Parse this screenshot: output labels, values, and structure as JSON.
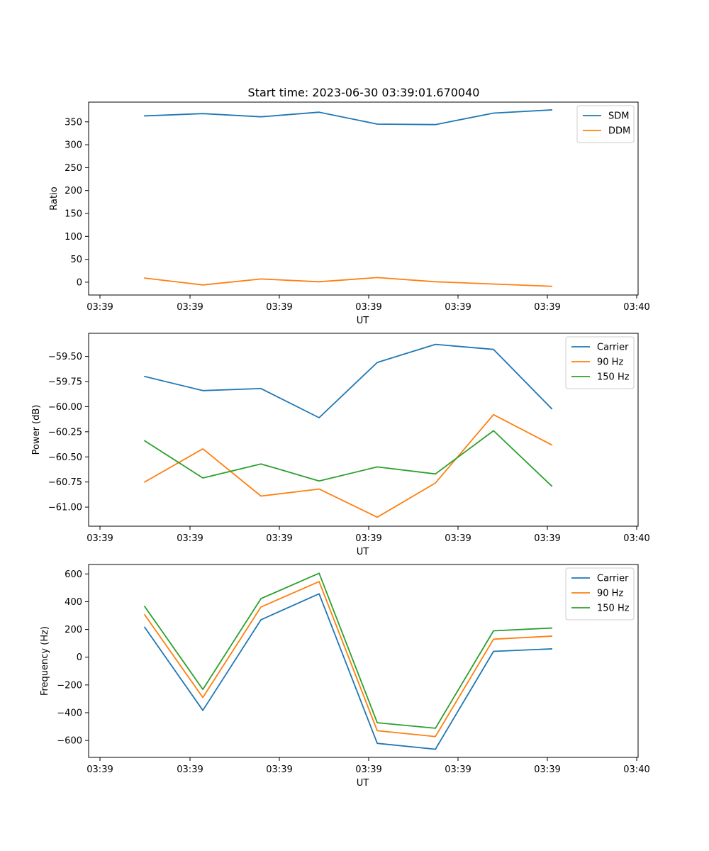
{
  "figure": {
    "title": "Start time: 2023-06-30 03:39:01.670040"
  },
  "colors": {
    "blue": "#1f77b4",
    "orange": "#ff7f0e",
    "green": "#2ca02c"
  },
  "chart_data": [
    {
      "type": "line",
      "xlabel": "UT",
      "ylabel": "Ratio",
      "x_tick_labels": [
        "03:39",
        "03:39",
        "03:39",
        "03:39",
        "03:39",
        "03:39",
        "03:40"
      ],
      "xlim": [
        0,
        6
      ],
      "ylim": [
        -28,
        393
      ],
      "y_ticks": [
        0,
        50,
        100,
        150,
        200,
        250,
        300,
        350
      ],
      "y_tick_labels": [
        "0",
        "50",
        "100",
        "150",
        "200",
        "250",
        "300",
        "350"
      ],
      "legend": "top-right",
      "x": [
        0.5,
        1.15,
        1.8,
        2.45,
        3.1,
        3.75,
        4.4,
        5.05
      ],
      "series": [
        {
          "name": "SDM",
          "color": "#1f77b4",
          "values": [
            363,
            368,
            361,
            371,
            345,
            344,
            369,
            376
          ]
        },
        {
          "name": "DDM",
          "color": "#ff7f0e",
          "values": [
            9,
            -6,
            7,
            1,
            10,
            1,
            -4,
            -9
          ]
        }
      ]
    },
    {
      "type": "line",
      "xlabel": "UT",
      "ylabel": "Power (dB)",
      "x_tick_labels": [
        "03:39",
        "03:39",
        "03:39",
        "03:39",
        "03:39",
        "03:39",
        "03:40"
      ],
      "xlim": [
        0,
        6
      ],
      "ylim": [
        -61.19,
        -59.27
      ],
      "y_ticks": [
        -61.0,
        -60.75,
        -60.5,
        -60.25,
        -60.0,
        -59.75,
        -59.5
      ],
      "y_tick_labels": [
        "−61.00",
        "−60.75",
        "−60.50",
        "−60.25",
        "−60.00",
        "−59.75",
        "−59.50"
      ],
      "legend": "top-right",
      "x": [
        0.5,
        1.15,
        1.8,
        2.45,
        3.1,
        3.75,
        4.4,
        5.05
      ],
      "series": [
        {
          "name": "Carrier",
          "color": "#1f77b4",
          "values": [
            -59.7,
            -59.84,
            -59.82,
            -60.11,
            -59.56,
            -59.38,
            -59.43,
            -60.02
          ]
        },
        {
          "name": "90 Hz",
          "color": "#ff7f0e",
          "values": [
            -60.75,
            -60.42,
            -60.89,
            -60.82,
            -61.1,
            -60.76,
            -60.08,
            -60.38
          ]
        },
        {
          "name": "150 Hz",
          "color": "#2ca02c",
          "values": [
            -60.34,
            -60.71,
            -60.57,
            -60.74,
            -60.6,
            -60.67,
            -60.24,
            -60.79
          ]
        }
      ]
    },
    {
      "type": "line",
      "xlabel": "UT",
      "ylabel": "Frequency (Hz)",
      "x_tick_labels": [
        "03:39",
        "03:39",
        "03:39",
        "03:39",
        "03:39",
        "03:39",
        "03:40"
      ],
      "xlim": [
        0,
        6
      ],
      "ylim": [
        -722,
        668
      ],
      "y_ticks": [
        -600,
        -400,
        -200,
        0,
        200,
        400,
        600
      ],
      "y_tick_labels": [
        "−600",
        "−400",
        "−200",
        "0",
        "200",
        "400",
        "600"
      ],
      "legend": "top-right",
      "x": [
        0.5,
        1.15,
        1.8,
        2.45,
        3.1,
        3.75,
        4.4,
        5.05
      ],
      "series": [
        {
          "name": "Carrier",
          "color": "#1f77b4",
          "values": [
            215,
            -383,
            270,
            457,
            -621,
            -663,
            42,
            60
          ]
        },
        {
          "name": "90 Hz",
          "color": "#ff7f0e",
          "values": [
            305,
            -290,
            362,
            545,
            -530,
            -572,
            130,
            152
          ]
        },
        {
          "name": "150 Hz",
          "color": "#2ca02c",
          "values": [
            365,
            -232,
            422,
            605,
            -472,
            -512,
            190,
            210
          ]
        }
      ]
    }
  ]
}
